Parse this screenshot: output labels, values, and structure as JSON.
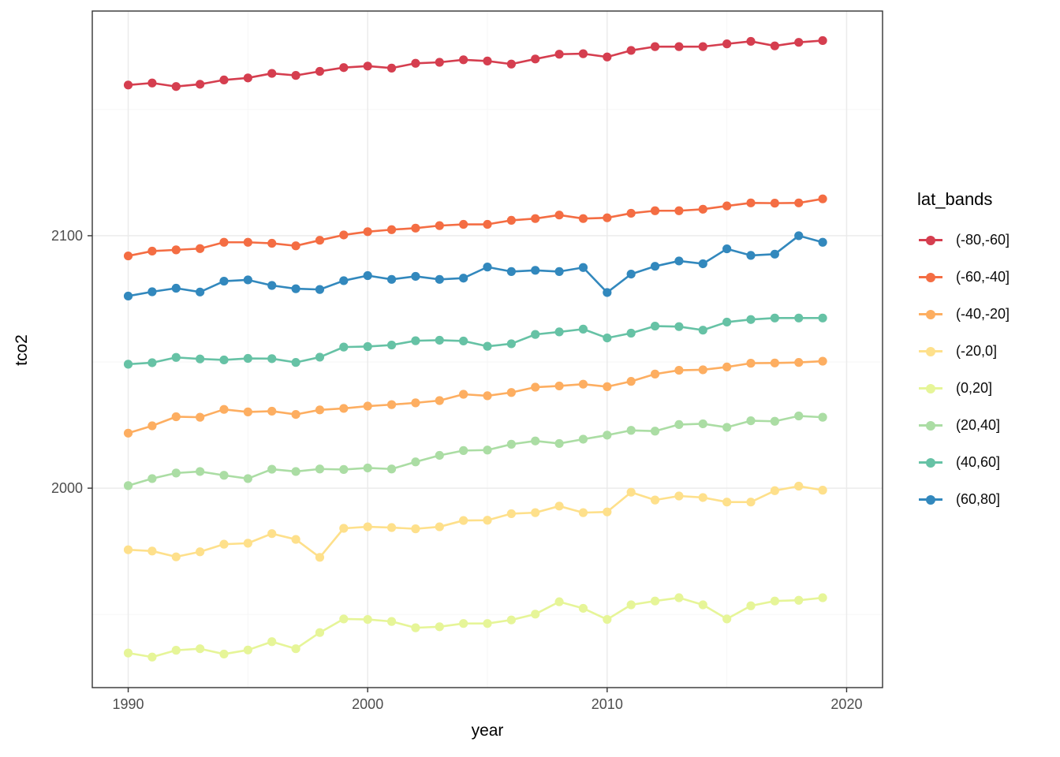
{
  "figure": {
    "xlabel": "year",
    "ylabel": "tco2",
    "legend_title": "lat_bands"
  },
  "chart_data": {
    "type": "line",
    "title": "",
    "xlabel": "year",
    "ylabel": "tco2",
    "legend_title": "lat_bands",
    "legend_position": "right",
    "grid": true,
    "panel_background": "#ffffff",
    "panel_border_color": "#333333",
    "grid_major_color": "#ebebeb",
    "grid_minor_color": "#f5f5f5",
    "tick_label_color": "#4d4d4d",
    "x_ticks": [
      1990,
      2000,
      2010,
      2020
    ],
    "x_minor_ticks": [
      1995,
      2005,
      2015
    ],
    "y_ticks": [
      2000,
      2100
    ],
    "y_minor_ticks": [
      1950,
      2050,
      2150
    ],
    "xlim": [
      1988.5,
      2021.5
    ],
    "ylim": [
      1921,
      2189
    ],
    "x": [
      1990,
      1991,
      1992,
      1993,
      1994,
      1995,
      1996,
      1997,
      1998,
      1999,
      2000,
      2001,
      2002,
      2003,
      2004,
      2005,
      2006,
      2007,
      2008,
      2009,
      2010,
      2011,
      2012,
      2013,
      2014,
      2015,
      2016,
      2017,
      2018,
      2019
    ],
    "series": [
      {
        "name": "(-80,-60]",
        "color": "#d53e4f",
        "values": [
          2159.7,
          2160.5,
          2159.1,
          2160.0,
          2161.7,
          2162.5,
          2164.3,
          2163.5,
          2165.1,
          2166.6,
          2167.2,
          2166.4,
          2168.3,
          2168.7,
          2169.7,
          2169.2,
          2168.0,
          2170.0,
          2171.9,
          2172.1,
          2170.8,
          2173.4,
          2174.9,
          2174.9,
          2174.9,
          2176.0,
          2177.0,
          2175.2,
          2176.6,
          2177.3
        ]
      },
      {
        "name": "(-60,-40]",
        "color": "#f46d43",
        "values": [
          2092.0,
          2093.9,
          2094.4,
          2094.9,
          2097.4,
          2097.4,
          2097.0,
          2096.0,
          2098.2,
          2100.3,
          2101.6,
          2102.4,
          2103.0,
          2104.0,
          2104.5,
          2104.5,
          2106.1,
          2106.8,
          2108.2,
          2106.8,
          2107.1,
          2108.9,
          2109.9,
          2109.9,
          2110.5,
          2111.8,
          2113.0,
          2112.9,
          2113.0,
          2114.6
        ]
      },
      {
        "name": "(-40,-20]",
        "color": "#fdae61",
        "values": [
          2021.8,
          2024.7,
          2028.3,
          2028.1,
          2031.2,
          2030.2,
          2030.5,
          2029.2,
          2031.0,
          2031.6,
          2032.5,
          2033.1,
          2033.8,
          2034.7,
          2037.2,
          2036.6,
          2037.9,
          2040.0,
          2040.5,
          2041.2,
          2040.2,
          2042.3,
          2045.2,
          2046.7,
          2046.9,
          2048.0,
          2049.5,
          2049.6,
          2049.8,
          2050.3
        ]
      },
      {
        "name": "(-20,0]",
        "color": "#fee08b",
        "values": [
          1975.6,
          1975.1,
          1972.8,
          1974.8,
          1977.8,
          1978.2,
          1982.0,
          1979.7,
          1972.6,
          1984.1,
          1984.7,
          1984.4,
          1983.9,
          1984.7,
          1987.2,
          1987.3,
          1989.9,
          1990.3,
          1992.9,
          1990.3,
          1990.6,
          1998.4,
          1995.3,
          1996.9,
          1996.3,
          1994.5,
          1994.5,
          1999.0,
          2000.8,
          1999.2
        ]
      },
      {
        "name": "(0,20]",
        "color": "#e6f598",
        "values": [
          1934.7,
          1933.1,
          1935.8,
          1936.4,
          1934.3,
          1935.9,
          1939.2,
          1936.4,
          1942.8,
          1948.2,
          1948.0,
          1947.2,
          1944.7,
          1945.1,
          1946.4,
          1946.4,
          1947.8,
          1950.1,
          1955.0,
          1952.4,
          1948.0,
          1953.8,
          1955.3,
          1956.6,
          1953.8,
          1948.2,
          1953.4,
          1955.3,
          1955.6,
          1956.6
        ]
      },
      {
        "name": "(20,40]",
        "color": "#abdda4",
        "values": [
          2001.0,
          2003.8,
          2006.0,
          2006.6,
          2005.1,
          2003.8,
          2007.5,
          2006.6,
          2007.6,
          2007.4,
          2008.0,
          2007.6,
          2010.4,
          2013.0,
          2014.9,
          2015.1,
          2017.4,
          2018.7,
          2017.7,
          2019.4,
          2021.0,
          2022.9,
          2022.6,
          2025.2,
          2025.5,
          2024.1,
          2026.7,
          2026.5,
          2028.6,
          2028.1
        ]
      },
      {
        "name": "(40,60]",
        "color": "#66c2a5",
        "values": [
          2049.1,
          2049.7,
          2051.8,
          2051.2,
          2050.8,
          2051.4,
          2051.3,
          2049.8,
          2051.9,
          2055.9,
          2056.1,
          2056.7,
          2058.4,
          2058.6,
          2058.3,
          2056.2,
          2057.2,
          2060.9,
          2061.9,
          2063.0,
          2059.5,
          2061.4,
          2064.2,
          2064.0,
          2062.6,
          2065.8,
          2066.8,
          2067.4,
          2067.4,
          2067.4
        ]
      },
      {
        "name": "(60,80]",
        "color": "#3288bd",
        "values": [
          2076.1,
          2077.8,
          2079.2,
          2077.7,
          2082.0,
          2082.5,
          2080.3,
          2079.0,
          2078.7,
          2082.2,
          2084.2,
          2082.7,
          2083.9,
          2082.7,
          2083.2,
          2087.6,
          2085.8,
          2086.3,
          2085.8,
          2087.4,
          2077.5,
          2084.8,
          2087.9,
          2090.0,
          2088.9,
          2094.8,
          2092.2,
          2092.7,
          2100.0,
          2097.4
        ]
      }
    ]
  }
}
